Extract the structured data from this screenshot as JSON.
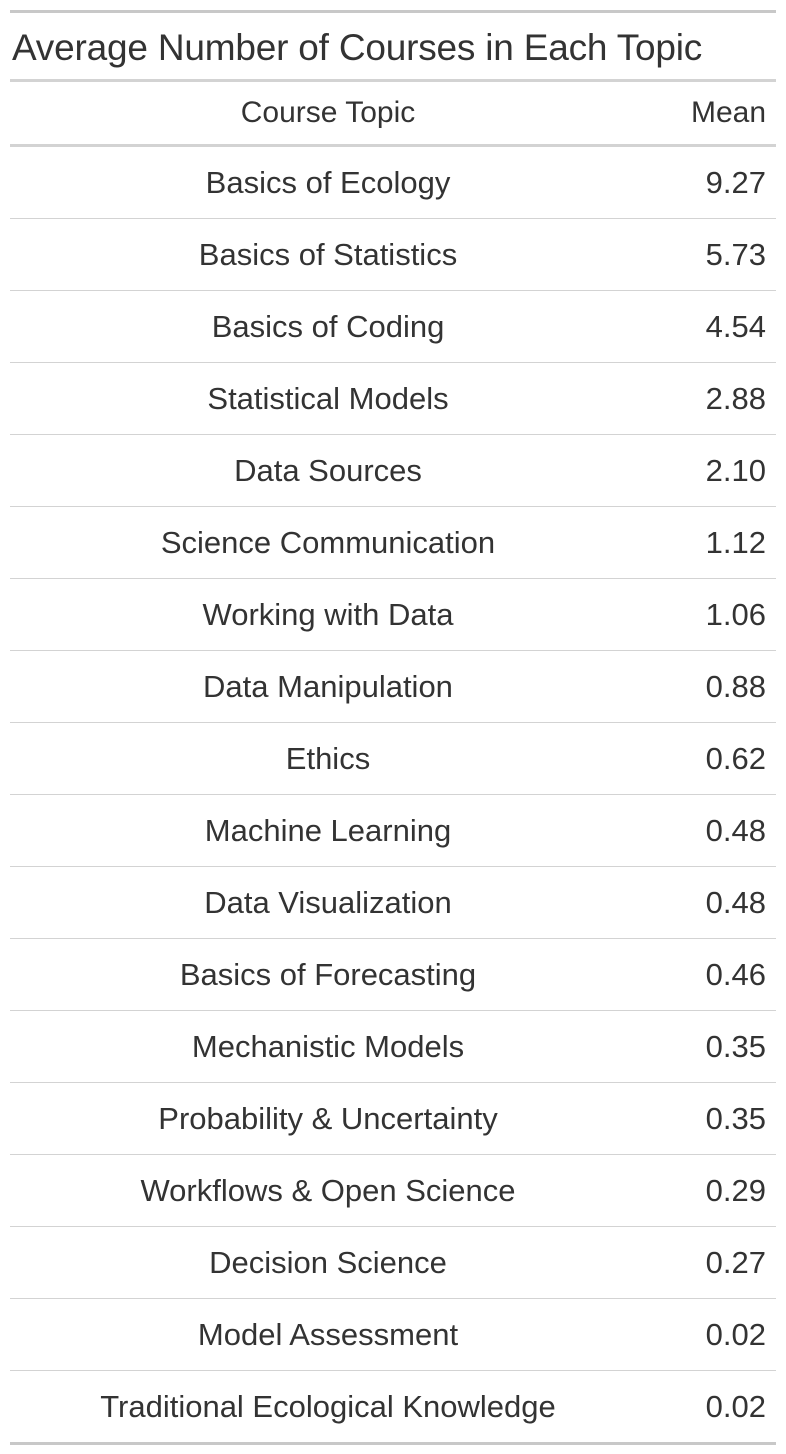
{
  "chart_data": {
    "type": "table",
    "title": "Average Number of Courses in Each Topic",
    "columns": [
      "Course Topic",
      "Mean"
    ],
    "rows": [
      [
        "Basics of Ecology",
        "9.27"
      ],
      [
        "Basics of Statistics",
        "5.73"
      ],
      [
        "Basics of Coding",
        "4.54"
      ],
      [
        "Statistical Models",
        "2.88"
      ],
      [
        "Data Sources",
        "2.10"
      ],
      [
        "Science Communication",
        "1.12"
      ],
      [
        "Working with Data",
        "1.06"
      ],
      [
        "Data Manipulation",
        "0.88"
      ],
      [
        "Ethics",
        "0.62"
      ],
      [
        "Machine Learning",
        "0.48"
      ],
      [
        "Data Visualization",
        "0.48"
      ],
      [
        "Basics of Forecasting",
        "0.46"
      ],
      [
        "Mechanistic Models",
        "0.35"
      ],
      [
        "Probability & Uncertainty",
        "0.35"
      ],
      [
        "Workflows & Open Science",
        "0.29"
      ],
      [
        "Decision Science",
        "0.27"
      ],
      [
        "Model Assessment",
        "0.02"
      ],
      [
        "Traditional Ecological Knowledge",
        "0.02"
      ]
    ]
  }
}
